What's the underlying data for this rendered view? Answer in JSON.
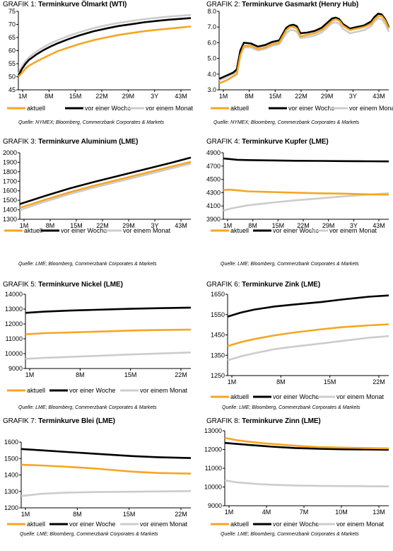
{
  "colors": {
    "aktuell": "#f5a623",
    "woche": "#000000",
    "monat": "#cccccc"
  },
  "chart_data": [
    {
      "type": "line",
      "title_prefix": "GRAFIK 1:",
      "title": "Terminkurve Ölmarkt (WTI)",
      "categories": [
        "1M",
        "8M",
        "15M",
        "22M",
        "29M",
        "3Y",
        "43M"
      ],
      "ylim": [
        45,
        75
      ],
      "yticks": [
        45,
        50,
        55,
        60,
        65,
        70,
        75
      ],
      "ytick_labels": [
        "45",
        "50",
        "55",
        "60",
        "65",
        "70",
        "75"
      ],
      "xlim": [
        1,
        49
      ],
      "x": [
        1,
        2,
        3,
        4,
        5,
        6,
        8,
        10,
        12,
        15,
        18,
        22,
        26,
        29,
        33,
        36,
        40,
        43,
        46,
        49
      ],
      "series": [
        {
          "name": "aktuell",
          "values": [
            50,
            51.5,
            53.2,
            54.3,
            55,
            55.8,
            57.2,
            58.5,
            59.8,
            61.2,
            62.5,
            64,
            65.2,
            66,
            66.8,
            67.4,
            68,
            68.4,
            68.8,
            69.2
          ]
        },
        {
          "name": "vor einer Woche",
          "values": [
            50.5,
            53,
            55,
            56.5,
            57.5,
            58.5,
            60.2,
            61.6,
            62.8,
            64.4,
            65.8,
            67.4,
            68.6,
            69.4,
            70.2,
            70.8,
            71.4,
            71.8,
            72.1,
            72.4
          ]
        },
        {
          "name": "vor einem Monat",
          "values": [
            51,
            54,
            56,
            57.5,
            58.6,
            59.6,
            61.3,
            62.8,
            64,
            65.6,
            67,
            68.6,
            69.8,
            70.6,
            71.4,
            72,
            72.6,
            73,
            73.3,
            73.6
          ]
        }
      ],
      "source": "Quelle: NYMEX; Bloomberg, Commerzbank Corporates & Markets"
    },
    {
      "type": "line",
      "title_prefix": "GRAFIK 2:",
      "title": "Terminkurve Gasmarkt (Henry Hub)",
      "categories": [
        "1M",
        "8M",
        "15M",
        "22M",
        "29M",
        "3Y",
        "43M"
      ],
      "ylim": [
        3,
        8
      ],
      "yticks": [
        3,
        4,
        5,
        6,
        7,
        8
      ],
      "ytick_labels": [
        "3.0",
        "4.0",
        "5.0",
        "6.0",
        "7.0",
        "8.0"
      ],
      "xlim": [
        1,
        49
      ],
      "x": [
        1,
        3,
        5,
        6,
        7,
        8,
        10,
        12,
        14,
        16,
        18,
        20,
        21,
        22,
        23,
        24,
        26,
        28,
        30,
        32,
        33,
        34,
        35,
        36,
        38,
        40,
        42,
        44,
        45,
        46,
        47,
        48,
        49
      ],
      "series": [
        {
          "name": "aktuell",
          "values": [
            3.4,
            3.6,
            3.85,
            4.0,
            5.2,
            5.8,
            5.8,
            5.6,
            5.7,
            5.9,
            6.0,
            6.8,
            7.0,
            7.0,
            6.9,
            6.4,
            6.5,
            6.6,
            6.8,
            7.2,
            7.4,
            7.5,
            7.4,
            7.1,
            6.8,
            6.9,
            7.0,
            7.2,
            7.5,
            7.7,
            7.7,
            7.4,
            6.9
          ]
        },
        {
          "name": "vor einer Woche",
          "values": [
            3.7,
            3.9,
            4.1,
            4.3,
            5.5,
            6.0,
            5.95,
            5.75,
            5.85,
            6.05,
            6.15,
            6.95,
            7.1,
            7.15,
            7.05,
            6.6,
            6.65,
            6.75,
            6.95,
            7.35,
            7.55,
            7.6,
            7.5,
            7.2,
            6.9,
            7.0,
            7.1,
            7.35,
            7.65,
            7.85,
            7.8,
            7.5,
            7.0
          ]
        },
        {
          "name": "vor einem Monat",
          "values": [
            3.6,
            3.8,
            4.0,
            4.2,
            5.3,
            5.7,
            5.7,
            5.5,
            5.6,
            5.8,
            5.9,
            6.6,
            6.8,
            6.8,
            6.7,
            6.3,
            6.35,
            6.45,
            6.65,
            7.05,
            7.25,
            7.3,
            7.2,
            6.9,
            6.6,
            6.7,
            6.8,
            7.05,
            7.35,
            7.55,
            7.5,
            7.2,
            6.7
          ]
        }
      ],
      "source": "Quelle: NYMEX; Bloomberg, Commerzbank Corporates & Markets"
    },
    {
      "type": "line",
      "title_prefix": "GRAFIK 3:",
      "title": "Terminkurve Aluminium (LME)",
      "categories": [
        "1M",
        "8M",
        "15M",
        "22M",
        "29M",
        "3Y",
        "43M"
      ],
      "ylim": [
        1300,
        2000
      ],
      "yticks": [
        1300,
        1400,
        1500,
        1600,
        1700,
        1800,
        1900,
        2000
      ],
      "ytick_labels": [
        "1300",
        "1400",
        "1500",
        "1600",
        "1700",
        "1800",
        "1900",
        "2000"
      ],
      "xlim": [
        1,
        49
      ],
      "x": [
        1,
        8,
        15,
        22,
        29,
        36,
        43,
        49
      ],
      "series": [
        {
          "name": "aktuell",
          "values": [
            1420,
            1505,
            1585,
            1655,
            1720,
            1785,
            1850,
            1905
          ]
        },
        {
          "name": "vor einer Woche",
          "values": [
            1460,
            1545,
            1625,
            1695,
            1760,
            1825,
            1890,
            1950
          ]
        },
        {
          "name": "vor einem Monat",
          "values": [
            1395,
            1485,
            1565,
            1635,
            1700,
            1765,
            1830,
            1885
          ]
        }
      ],
      "source": "Quelle: LME; Bloomberg, Commerzbank Corporates & Markets"
    },
    {
      "type": "line",
      "title_prefix": "GRAFIK 4:",
      "title": "Terminkurve Kupfer (LME)",
      "categories": [
        "1M",
        "8M",
        "15M",
        "22M",
        "29M",
        "3Y",
        "43M"
      ],
      "ylim": [
        3900,
        4900
      ],
      "yticks": [
        3900,
        4100,
        4300,
        4500,
        4700,
        4900
      ],
      "ytick_labels": [
        "3900",
        "4100",
        "4300",
        "4500",
        "4700",
        "4900"
      ],
      "xlim": [
        1,
        49
      ],
      "x": [
        1,
        3,
        5,
        8,
        15,
        22,
        29,
        36,
        43,
        49
      ],
      "series": [
        {
          "name": "aktuell",
          "values": [
            4340,
            4345,
            4335,
            4320,
            4310,
            4300,
            4290,
            4285,
            4275,
            4270
          ]
        },
        {
          "name": "vor einer Woche",
          "values": [
            4815,
            4805,
            4795,
            4790,
            4785,
            4780,
            4778,
            4775,
            4772,
            4770
          ]
        },
        {
          "name": "vor einem Monat",
          "values": [
            4030,
            4060,
            4080,
            4110,
            4150,
            4185,
            4215,
            4245,
            4270,
            4290
          ]
        }
      ],
      "source": "Quelle: LME; Bloomberg, Commerzbank Corporates & Markets"
    },
    {
      "type": "line",
      "title_prefix": "GRAFIK 5:",
      "title": "Terminkurve Nickel (LME)",
      "categories": [
        "1M",
        "8M",
        "15M",
        "22M"
      ],
      "ylim": [
        9000,
        14000
      ],
      "yticks": [
        9000,
        10000,
        11000,
        12000,
        13000,
        14000
      ],
      "ytick_labels": [
        "9000",
        "10000",
        "11000",
        "12000",
        "13000",
        "14000"
      ],
      "xlim": [
        1,
        27
      ],
      "x": [
        1,
        4,
        8,
        12,
        15,
        18,
        22,
        27
      ],
      "series": [
        {
          "name": "aktuell",
          "values": [
            11300,
            11380,
            11430,
            11480,
            11520,
            11560,
            11590,
            11620
          ]
        },
        {
          "name": "vor einer Woche",
          "values": [
            12750,
            12830,
            12900,
            12950,
            12990,
            13030,
            13060,
            13100
          ]
        },
        {
          "name": "vor einem Monat",
          "values": [
            9650,
            9720,
            9780,
            9850,
            9900,
            9950,
            10010,
            10080
          ]
        }
      ],
      "source": "Quelle: LME; Bloomberg, Commerzbank Corporates & Markets"
    },
    {
      "type": "line",
      "title_prefix": "GRAFIK 6:",
      "title": "Terminkurve Zink (LME)",
      "categories": [
        "1M",
        "8M",
        "15M",
        "22M"
      ],
      "ylim": [
        1250,
        1650
      ],
      "yticks": [
        1250,
        1350,
        1450,
        1550,
        1650
      ],
      "ytick_labels": [
        "1250",
        "1350",
        "1450",
        "1550",
        "1650"
      ],
      "xlim": [
        1,
        25
      ],
      "x": [
        1,
        3,
        5,
        8,
        11,
        15,
        18,
        22,
        25
      ],
      "series": [
        {
          "name": "aktuell",
          "values": [
            1395,
            1415,
            1430,
            1448,
            1462,
            1478,
            1488,
            1497,
            1502
          ]
        },
        {
          "name": "vor einer Woche",
          "values": [
            1540,
            1560,
            1575,
            1590,
            1600,
            1612,
            1624,
            1638,
            1644
          ]
        },
        {
          "name": "vor einem Monat",
          "values": [
            1325,
            1345,
            1360,
            1380,
            1393,
            1408,
            1420,
            1436,
            1444
          ]
        }
      ],
      "source": "Quelle: LME; Bloomberg, Commerzbank Corporates & Markets"
    },
    {
      "type": "line",
      "title_prefix": "GRAFIK 7:",
      "title": "Terminkurve Blei (LME)",
      "categories": [
        "1M",
        "8M",
        "15M",
        "22M"
      ],
      "ylim": [
        1200,
        1600
      ],
      "yticks": [
        1200,
        1300,
        1400,
        1500,
        1600
      ],
      "ytick_labels": [
        "1200",
        "1300",
        "1400",
        "1500",
        "1600"
      ],
      "xlim": [
        1,
        27
      ],
      "x": [
        1,
        4,
        8,
        12,
        15,
        18,
        22,
        27
      ],
      "series": [
        {
          "name": "aktuell",
          "values": [
            1462,
            1458,
            1450,
            1440,
            1430,
            1420,
            1412,
            1408
          ]
        },
        {
          "name": "vor einer Woche",
          "values": [
            1558,
            1550,
            1540,
            1530,
            1522,
            1515,
            1508,
            1503
          ]
        },
        {
          "name": "vor einem Monat",
          "values": [
            1272,
            1285,
            1293,
            1296,
            1297,
            1298,
            1300,
            1302
          ]
        }
      ],
      "source": "Quelle: LME; Bloomberg, Commerzbank Corporates & Markets"
    },
    {
      "type": "line",
      "title_prefix": "GRAFIK 8:",
      "title": "Terminkurve Zinn (LME)",
      "categories": [
        "1M",
        "4M",
        "7M",
        "10M",
        "13M"
      ],
      "ylim": [
        9000,
        13000
      ],
      "yticks": [
        9000,
        10000,
        11000,
        12000,
        13000
      ],
      "ytick_labels": [
        "9000",
        "10000",
        "11000",
        "12000",
        "13000"
      ],
      "xlim": [
        1,
        15
      ],
      "x": [
        1,
        2,
        3,
        4,
        5,
        7,
        9,
        11,
        13,
        15
      ],
      "series": [
        {
          "name": "aktuell",
          "values": [
            12620,
            12500,
            12420,
            12350,
            12300,
            12200,
            12130,
            12100,
            12080,
            12060
          ]
        },
        {
          "name": "vor einer Woche",
          "values": [
            12350,
            12300,
            12250,
            12200,
            12150,
            12080,
            12040,
            12010,
            12000,
            11990
          ]
        },
        {
          "name": "vor einem Monat",
          "values": [
            10350,
            10250,
            10200,
            10150,
            10120,
            10080,
            10060,
            10050,
            10040,
            10030
          ]
        }
      ],
      "source": "Quelle: LME; Bloomberg, Commerzbank Corporates & Markets"
    }
  ]
}
